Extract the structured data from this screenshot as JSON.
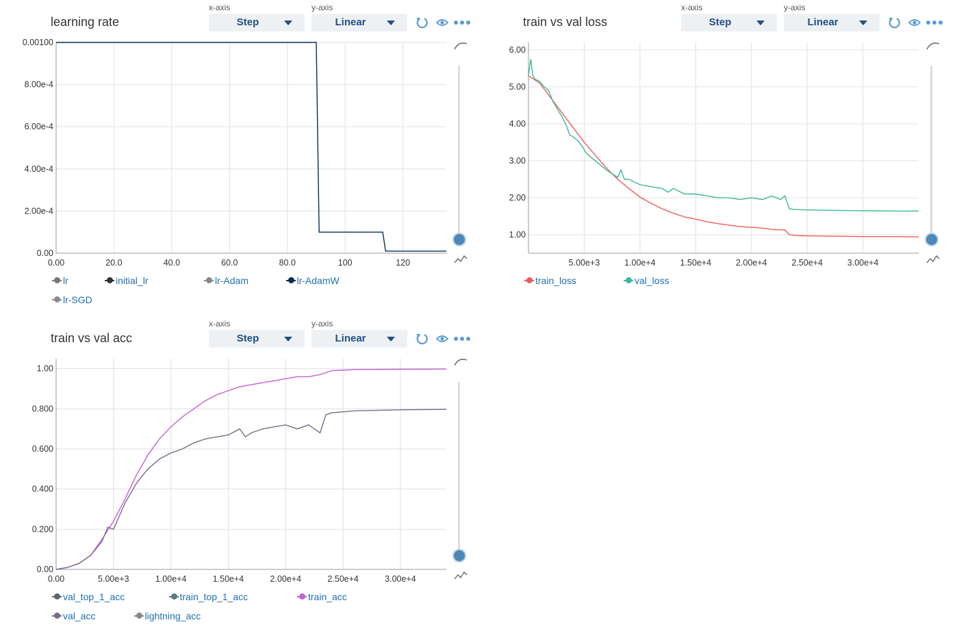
{
  "colors": {
    "accent": "#1f4f82",
    "icon": "#5b9bd5",
    "grid": "#e0e0e0"
  },
  "panels": [
    {
      "title": "learning rate",
      "xaxis_caption": "x-axis",
      "yaxis_caption": "y-axis",
      "xaxis_value": "Step",
      "yaxis_value": "Linear",
      "icons": [
        "reset-icon",
        "eye-icon",
        "more-icon",
        "smoothing-icon",
        "slider-handle",
        "data-icon"
      ],
      "legend": [
        {
          "name": "lr",
          "color": "#777777"
        },
        {
          "name": "initial_lr",
          "color": "#333333"
        },
        {
          "name": "lr-Adam",
          "color": "#888888"
        },
        {
          "name": "lr-AdamW",
          "color": "#0a2d4f"
        },
        {
          "name": "lr-SGD",
          "color": "#8a8a8a"
        }
      ]
    },
    {
      "title": "train vs val loss",
      "xaxis_caption": "x-axis",
      "yaxis_caption": "y-axis",
      "xaxis_value": "Step",
      "yaxis_value": "Linear",
      "icons": [
        "reset-icon",
        "eye-icon",
        "more-icon",
        "smoothing-icon",
        "slider-handle",
        "data-icon"
      ],
      "legend": [
        {
          "name": "train_loss",
          "color": "#ef5b5b"
        },
        {
          "name": "val_loss",
          "color": "#3bb89a"
        }
      ]
    },
    {
      "title": "train vs val acc",
      "xaxis_caption": "x-axis",
      "yaxis_caption": "y-axis",
      "xaxis_value": "Step",
      "yaxis_value": "Linear",
      "icons": [
        "reset-icon",
        "eye-icon",
        "more-icon",
        "smoothing-icon",
        "slider-handle",
        "data-icon"
      ],
      "legend": [
        {
          "name": "val_top_1_acc",
          "color": "#5d6670"
        },
        {
          "name": "train_top_1_acc",
          "color": "#5f7a7a"
        },
        {
          "name": "train_acc",
          "color": "#c061d6"
        },
        {
          "name": "val_acc",
          "color": "#7b6a8a"
        },
        {
          "name": "lightning_acc",
          "color": "#888888"
        }
      ]
    }
  ],
  "chart_data": [
    {
      "type": "line",
      "title": "learning rate",
      "xlim": [
        0,
        135
      ],
      "ylim": [
        0,
        0.001
      ],
      "xticks": [
        0,
        20,
        40,
        60,
        80,
        100,
        120
      ],
      "xtick_labels": [
        "0.00",
        "20.0",
        "40.0",
        "60.0",
        "80.0",
        "100",
        "120"
      ],
      "yticks": [
        0,
        0.0002,
        0.0004,
        0.0006,
        0.0008,
        0.001
      ],
      "ytick_labels": [
        "0.00",
        "2.00e-4",
        "4.00e-4",
        "6.00e-4",
        "8.00e-4",
        "0.00100"
      ],
      "series": [
        {
          "name": "lr-AdamW",
          "color": "#0a2d4f",
          "x": [
            0,
            90,
            91,
            113,
            114,
            135
          ],
          "y": [
            0.001,
            0.001,
            0.0001,
            0.0001,
            1e-05,
            1e-05
          ]
        }
      ]
    },
    {
      "type": "line",
      "title": "train vs val loss",
      "xlim": [
        0,
        35000
      ],
      "ylim": [
        0.5,
        6.2
      ],
      "xticks": [
        5000,
        10000,
        15000,
        20000,
        25000,
        30000
      ],
      "xtick_labels": [
        "5.00e+3",
        "1.00e+4",
        "1.50e+4",
        "2.00e+4",
        "2.50e+4",
        "3.00e+4"
      ],
      "yticks": [
        1,
        2,
        3,
        4,
        5,
        6
      ],
      "ytick_labels": [
        "1.00",
        "2.00",
        "3.00",
        "4.00",
        "5.00",
        "6.00"
      ],
      "series": [
        {
          "name": "train_loss",
          "color": "#ef5b5b",
          "x": [
            0,
            1000,
            2000,
            3000,
            4000,
            5000,
            6000,
            7000,
            8000,
            9000,
            10000,
            11000,
            12000,
            13000,
            14000,
            15000,
            16000,
            17000,
            18000,
            19000,
            20000,
            21000,
            22000,
            23000,
            23400,
            24000,
            25000,
            27000,
            30000,
            33000,
            35000
          ],
          "y": [
            5.3,
            5.1,
            4.7,
            4.3,
            3.9,
            3.5,
            3.15,
            2.8,
            2.5,
            2.25,
            2.02,
            1.85,
            1.7,
            1.58,
            1.48,
            1.42,
            1.35,
            1.3,
            1.26,
            1.22,
            1.2,
            1.18,
            1.14,
            1.13,
            1.0,
            0.98,
            0.97,
            0.96,
            0.95,
            0.95,
            0.94
          ]
        },
        {
          "name": "val_loss",
          "color": "#3bb89a",
          "x": [
            0,
            200,
            400,
            600,
            1000,
            1400,
            1800,
            2200,
            2600,
            3000,
            3400,
            3700,
            4000,
            4400,
            4800,
            5200,
            6000,
            7000,
            8000,
            8300,
            8600,
            9000,
            10000,
            11000,
            12000,
            12500,
            13000,
            14000,
            15000,
            16000,
            17000,
            18000,
            19000,
            20000,
            21000,
            21800,
            22600,
            23000,
            23400,
            24000,
            25000,
            27000,
            30000,
            33000,
            35000
          ],
          "y": [
            5.3,
            5.75,
            5.3,
            5.2,
            5.15,
            5.0,
            4.9,
            4.6,
            4.4,
            4.2,
            3.95,
            3.7,
            3.65,
            3.55,
            3.4,
            3.2,
            3.0,
            2.75,
            2.55,
            2.75,
            2.5,
            2.5,
            2.35,
            2.3,
            2.25,
            2.15,
            2.25,
            2.1,
            2.1,
            2.05,
            2.0,
            2.0,
            1.95,
            2.0,
            1.95,
            2.05,
            1.95,
            2.05,
            1.7,
            1.68,
            1.67,
            1.66,
            1.65,
            1.64,
            1.64
          ]
        }
      ]
    },
    {
      "type": "line",
      "title": "train vs val acc",
      "xlim": [
        0,
        34000
      ],
      "ylim": [
        0,
        1.05
      ],
      "xticks": [
        0,
        5000,
        10000,
        15000,
        20000,
        25000,
        30000
      ],
      "xtick_labels": [
        "0.00",
        "5.00e+3",
        "1.00e+4",
        "1.50e+4",
        "2.00e+4",
        "2.50e+4",
        "3.00e+4"
      ],
      "yticks": [
        0,
        0.2,
        0.4,
        0.6,
        0.8,
        1.0
      ],
      "ytick_labels": [
        "0.00",
        "0.200",
        "0.400",
        "0.600",
        "0.800",
        "1.00"
      ],
      "series": [
        {
          "name": "train_acc",
          "color": "#c061d6",
          "x": [
            0,
            1000,
            2000,
            3000,
            4000,
            5000,
            6000,
            7000,
            8000,
            9000,
            10000,
            11000,
            12000,
            13000,
            14000,
            15000,
            16000,
            17000,
            18000,
            19000,
            20000,
            21000,
            22000,
            23000,
            24000,
            26000,
            30000,
            34000
          ],
          "y": [
            0.0,
            0.01,
            0.03,
            0.07,
            0.15,
            0.24,
            0.35,
            0.47,
            0.57,
            0.65,
            0.71,
            0.76,
            0.8,
            0.84,
            0.87,
            0.89,
            0.91,
            0.92,
            0.93,
            0.94,
            0.95,
            0.96,
            0.96,
            0.97,
            0.99,
            0.995,
            0.997,
            0.998
          ]
        },
        {
          "name": "val_acc",
          "color": "#7b6a8a",
          "x": [
            0,
            1000,
            2000,
            3000,
            4000,
            4500,
            5000,
            6000,
            7000,
            8000,
            9000,
            10000,
            11000,
            12000,
            13000,
            14000,
            15000,
            16000,
            16500,
            17000,
            18000,
            19000,
            20000,
            21000,
            22000,
            22500,
            23000,
            23500,
            24000,
            26000,
            30000,
            34000
          ],
          "y": [
            0.0,
            0.01,
            0.03,
            0.07,
            0.14,
            0.21,
            0.2,
            0.33,
            0.43,
            0.5,
            0.55,
            0.58,
            0.6,
            0.63,
            0.65,
            0.66,
            0.67,
            0.7,
            0.66,
            0.68,
            0.7,
            0.71,
            0.72,
            0.7,
            0.72,
            0.7,
            0.68,
            0.77,
            0.78,
            0.79,
            0.795,
            0.797
          ]
        }
      ]
    }
  ]
}
